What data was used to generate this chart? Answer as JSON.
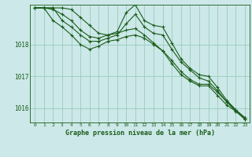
{
  "title": "Graphe pression niveau de la mer (hPa)",
  "bg_color": "#cce8e8",
  "grid_color": "#99ccbb",
  "line_color": "#1a5c1a",
  "xlim": [
    -0.5,
    23.5
  ],
  "ylim": [
    1015.55,
    1019.25
  ],
  "yticks": [
    1016,
    1017,
    1018
  ],
  "xticks": [
    0,
    1,
    2,
    3,
    4,
    5,
    6,
    7,
    8,
    9,
    10,
    11,
    12,
    13,
    14,
    15,
    16,
    17,
    18,
    19,
    20,
    21,
    22,
    23
  ],
  "series": [
    [
      1019.15,
      1019.15,
      1019.15,
      1019.15,
      1019.1,
      1018.85,
      1018.6,
      1018.35,
      1018.3,
      1018.4,
      1019.0,
      1019.25,
      1018.75,
      1018.6,
      1018.55,
      1018.05,
      1017.55,
      1017.25,
      1017.05,
      1017.0,
      1016.65,
      1016.25,
      1015.95,
      1015.65
    ],
    [
      1019.15,
      1019.15,
      1019.15,
      1018.75,
      1018.55,
      1018.3,
      1018.1,
      1018.1,
      1018.2,
      1018.3,
      1018.65,
      1018.95,
      1018.55,
      1018.35,
      1018.3,
      1017.85,
      1017.45,
      1017.2,
      1016.95,
      1016.85,
      1016.55,
      1016.2,
      1015.9,
      1015.7
    ],
    [
      1019.15,
      1019.15,
      1018.75,
      1018.55,
      1018.3,
      1018.0,
      1017.85,
      1017.95,
      1018.1,
      1018.15,
      1018.25,
      1018.3,
      1018.2,
      1018.0,
      1017.8,
      1017.5,
      1017.15,
      1016.9,
      1016.75,
      1016.75,
      1016.5,
      1016.2,
      1015.95,
      1015.7
    ],
    [
      1019.15,
      1019.15,
      1019.1,
      1018.95,
      1018.75,
      1018.45,
      1018.25,
      1018.2,
      1018.3,
      1018.35,
      1018.45,
      1018.5,
      1018.3,
      1018.05,
      1017.8,
      1017.4,
      1017.05,
      1016.85,
      1016.7,
      1016.7,
      1016.4,
      1016.1,
      1015.9,
      1015.65
    ]
  ]
}
